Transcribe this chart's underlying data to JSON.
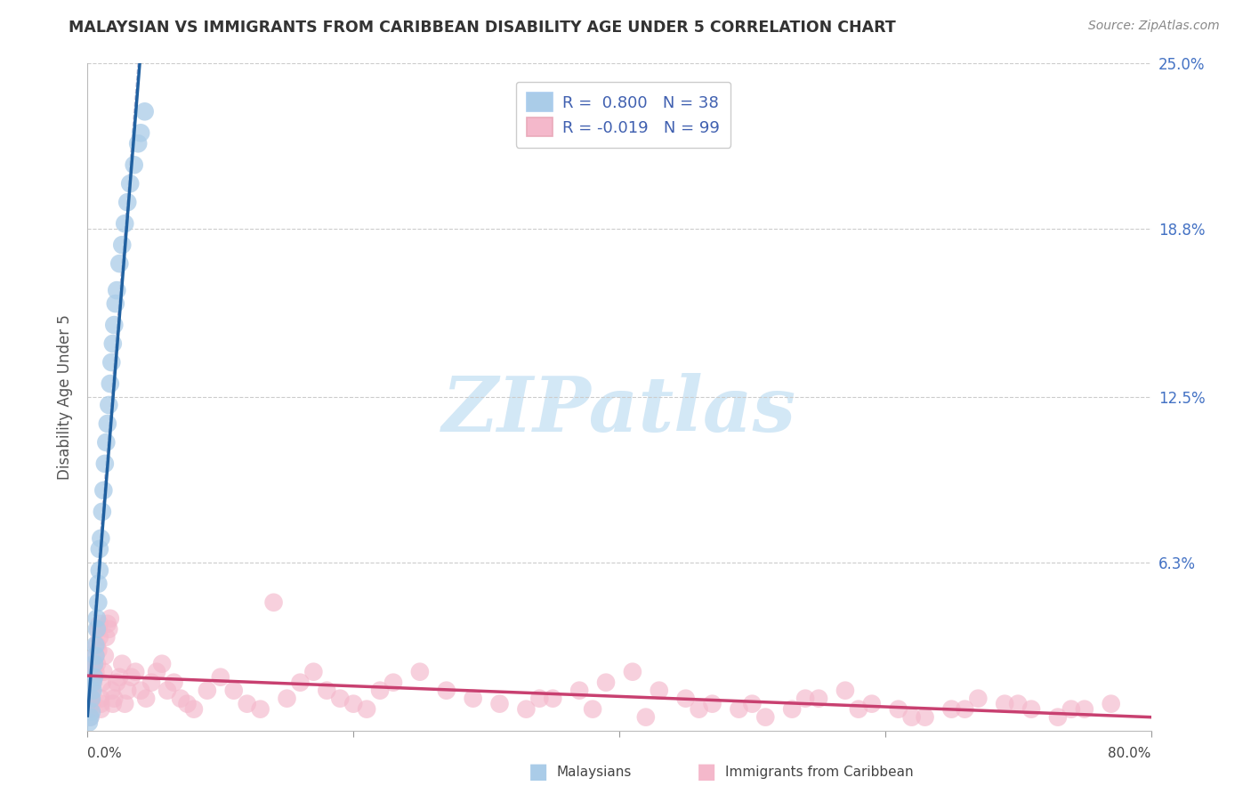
{
  "title": "MALAYSIAN VS IMMIGRANTS FROM CARIBBEAN DISABILITY AGE UNDER 5 CORRELATION CHART",
  "source": "Source: ZipAtlas.com",
  "ylabel": "Disability Age Under 5",
  "xlim": [
    0.0,
    0.8
  ],
  "ylim": [
    0.0,
    0.25
  ],
  "yticks": [
    0.0,
    0.063,
    0.125,
    0.188,
    0.25
  ],
  "ytick_labels": [
    "",
    "6.3%",
    "12.5%",
    "18.8%",
    "25.0%"
  ],
  "xtick_labels": [
    "0.0%",
    "80.0%"
  ],
  "xticks": [
    0.0,
    0.8
  ],
  "blue_R": 0.8,
  "blue_N": 38,
  "pink_R": -0.019,
  "pink_N": 99,
  "blue_color": "#aacce8",
  "pink_color": "#f4b8cb",
  "blue_line_color": "#2060a0",
  "pink_line_color": "#c84070",
  "legend_text_color": "#4060b0",
  "legend_label_blue": "Malaysians",
  "legend_label_pink": "Immigrants from Caribbean",
  "watermark": "ZIPatlas",
  "grid_color": "#cccccc",
  "blue_x": [
    0.001,
    0.002,
    0.003,
    0.003,
    0.004,
    0.004,
    0.005,
    0.005,
    0.006,
    0.006,
    0.007,
    0.007,
    0.008,
    0.008,
    0.009,
    0.009,
    0.01,
    0.011,
    0.012,
    0.013,
    0.014,
    0.015,
    0.016,
    0.017,
    0.018,
    0.019,
    0.02,
    0.021,
    0.022,
    0.024,
    0.026,
    0.028,
    0.03,
    0.032,
    0.035,
    0.038,
    0.04,
    0.043
  ],
  "blue_y": [
    0.003,
    0.005,
    0.007,
    0.012,
    0.015,
    0.018,
    0.02,
    0.025,
    0.028,
    0.032,
    0.038,
    0.042,
    0.048,
    0.055,
    0.06,
    0.068,
    0.072,
    0.082,
    0.09,
    0.1,
    0.108,
    0.115,
    0.122,
    0.13,
    0.138,
    0.145,
    0.152,
    0.16,
    0.165,
    0.175,
    0.182,
    0.19,
    0.198,
    0.205,
    0.212,
    0.22,
    0.224,
    0.232
  ],
  "pink_x": [
    0.001,
    0.002,
    0.002,
    0.003,
    0.003,
    0.004,
    0.004,
    0.005,
    0.005,
    0.006,
    0.006,
    0.007,
    0.007,
    0.008,
    0.008,
    0.009,
    0.009,
    0.01,
    0.01,
    0.011,
    0.012,
    0.013,
    0.014,
    0.015,
    0.016,
    0.017,
    0.018,
    0.019,
    0.02,
    0.022,
    0.024,
    0.026,
    0.028,
    0.03,
    0.033,
    0.036,
    0.04,
    0.044,
    0.048,
    0.052,
    0.056,
    0.06,
    0.065,
    0.07,
    0.075,
    0.08,
    0.09,
    0.1,
    0.11,
    0.12,
    0.13,
    0.14,
    0.15,
    0.16,
    0.17,
    0.18,
    0.19,
    0.2,
    0.21,
    0.22,
    0.23,
    0.25,
    0.27,
    0.29,
    0.31,
    0.33,
    0.35,
    0.37,
    0.39,
    0.41,
    0.43,
    0.45,
    0.47,
    0.49,
    0.51,
    0.53,
    0.55,
    0.57,
    0.59,
    0.61,
    0.63,
    0.65,
    0.67,
    0.69,
    0.71,
    0.73,
    0.75,
    0.77,
    0.34,
    0.38,
    0.42,
    0.46,
    0.5,
    0.54,
    0.58,
    0.62,
    0.66,
    0.7,
    0.74,
    0.01
  ],
  "pink_y": [
    0.008,
    0.005,
    0.012,
    0.01,
    0.015,
    0.018,
    0.022,
    0.02,
    0.025,
    0.022,
    0.028,
    0.025,
    0.032,
    0.03,
    0.038,
    0.035,
    0.04,
    0.012,
    0.008,
    0.018,
    0.022,
    0.028,
    0.035,
    0.04,
    0.038,
    0.042,
    0.015,
    0.01,
    0.012,
    0.018,
    0.02,
    0.025,
    0.01,
    0.015,
    0.02,
    0.022,
    0.015,
    0.012,
    0.018,
    0.022,
    0.025,
    0.015,
    0.018,
    0.012,
    0.01,
    0.008,
    0.015,
    0.02,
    0.015,
    0.01,
    0.008,
    0.048,
    0.012,
    0.018,
    0.022,
    0.015,
    0.012,
    0.01,
    0.008,
    0.015,
    0.018,
    0.022,
    0.015,
    0.012,
    0.01,
    0.008,
    0.012,
    0.015,
    0.018,
    0.022,
    0.015,
    0.012,
    0.01,
    0.008,
    0.005,
    0.008,
    0.012,
    0.015,
    0.01,
    0.008,
    0.005,
    0.008,
    0.012,
    0.01,
    0.008,
    0.005,
    0.008,
    0.01,
    0.012,
    0.008,
    0.005,
    0.008,
    0.01,
    0.012,
    0.008,
    0.005,
    0.008,
    0.01,
    0.008,
    0.01
  ]
}
